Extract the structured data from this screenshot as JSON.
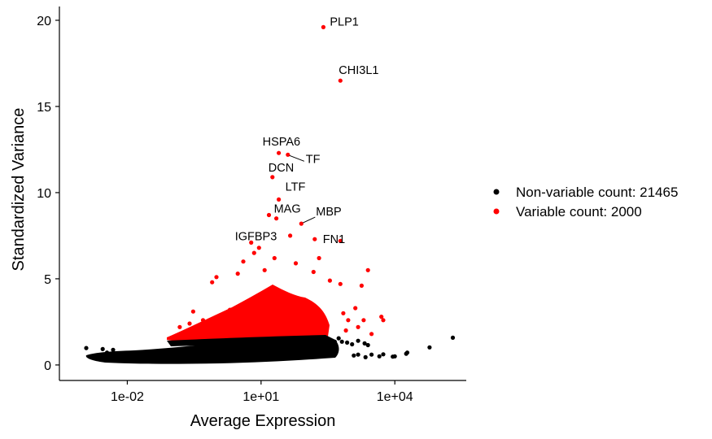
{
  "chart_data": {
    "type": "scatter",
    "xlabel": "Average Expression",
    "ylabel": "Standardized Variance",
    "x_scale": "log10",
    "xlim": [
      0.0003,
      400000
    ],
    "ylim": [
      -0.9,
      20.8
    ],
    "x_ticks": [
      {
        "value": 0.01,
        "label": "1e-02"
      },
      {
        "value": 10,
        "label": "1e+01"
      },
      {
        "value": 10000,
        "label": "1e+04"
      }
    ],
    "y_ticks": [
      {
        "value": 0,
        "label": "0"
      },
      {
        "value": 5,
        "label": "5"
      },
      {
        "value": 10,
        "label": "10"
      },
      {
        "value": 15,
        "label": "15"
      },
      {
        "value": 20,
        "label": "20"
      }
    ],
    "grid": false,
    "legend_position": "right",
    "series": [
      {
        "name": "Non-variable count: 21465",
        "color": "#000000",
        "points": [
          [
            0.0012,
            0.98
          ],
          [
            0.0028,
            0.92
          ],
          [
            0.0035,
            0.72
          ],
          [
            0.0042,
            0.62
          ],
          [
            0.0045,
            0.45
          ],
          [
            0.0055,
            0.35
          ],
          [
            0.0048,
            0.88
          ],
          [
            0.009,
            0.6
          ],
          [
            0.02,
            0.4
          ],
          [
            0.08,
            0.7
          ],
          [
            0.5,
            0.5
          ],
          [
            3.5,
            0.35
          ],
          [
            25,
            0.5
          ],
          [
            120,
            0.6
          ],
          [
            300,
            0.9
          ],
          [
            450,
            1.35
          ],
          [
            550,
            1.55
          ],
          [
            650,
            1.35
          ],
          [
            850,
            1.3
          ],
          [
            1100,
            1.2
          ],
          [
            1500,
            1.4
          ],
          [
            2100,
            1.25
          ],
          [
            2500,
            1.15
          ],
          [
            1200,
            0.55
          ],
          [
            1500,
            0.6
          ],
          [
            2200,
            0.45
          ],
          [
            3000,
            0.6
          ],
          [
            4500,
            0.5
          ],
          [
            5500,
            0.62
          ],
          [
            9000,
            0.48
          ],
          [
            10000,
            0.5
          ],
          [
            18000,
            0.65
          ],
          [
            19000,
            0.72
          ],
          [
            60000,
            1.02
          ],
          [
            200000,
            1.58
          ]
        ]
      },
      {
        "name": "Variable count: 2000",
        "color": "#ff0000",
        "points": [
          [
            250,
            19.6
          ],
          [
            600,
            16.5
          ],
          [
            25,
            12.3
          ],
          [
            40,
            12.2
          ],
          [
            18,
            10.9
          ],
          [
            25,
            9.6
          ],
          [
            22,
            8.5
          ],
          [
            15,
            8.7
          ],
          [
            80,
            8.2
          ],
          [
            45,
            7.5
          ],
          [
            6,
            7.1
          ],
          [
            160,
            7.3
          ],
          [
            600,
            7.2
          ],
          [
            9,
            6.8
          ],
          [
            7,
            6.5
          ],
          [
            20,
            6.2
          ],
          [
            4,
            6.0
          ],
          [
            60,
            5.9
          ],
          [
            150,
            5.4
          ],
          [
            2500,
            5.5
          ],
          [
            200,
            6.2
          ],
          [
            1,
            5.1
          ],
          [
            3,
            5.3
          ],
          [
            12,
            5.5
          ],
          [
            0.8,
            4.8
          ],
          [
            350,
            4.9
          ],
          [
            600,
            4.7
          ],
          [
            1800,
            4.6
          ],
          [
            2000,
            2.6
          ],
          [
            1300,
            3.3
          ],
          [
            300,
            2.2
          ],
          [
            100,
            3.6
          ],
          [
            30,
            4.2
          ],
          [
            50,
            3.0
          ],
          [
            8,
            3.8
          ],
          [
            2,
            3.2
          ],
          [
            0.3,
            3.1
          ],
          [
            0.5,
            2.6
          ],
          [
            1.2,
            2.8
          ],
          [
            700,
            3.0
          ],
          [
            900,
            2.6
          ],
          [
            5000,
            2.8
          ],
          [
            5500,
            2.6
          ],
          [
            3000,
            1.8
          ],
          [
            10,
            2.4
          ],
          [
            0.15,
            2.2
          ],
          [
            0.25,
            2.4
          ],
          [
            40,
            2.3
          ],
          [
            1500,
            2.2
          ],
          [
            800,
            2.0
          ],
          [
            200,
            3.0
          ],
          [
            6,
            2.7
          ],
          [
            0.7,
            2.0
          ]
        ]
      }
    ],
    "labels": [
      {
        "text": "PLP1",
        "x": 250,
        "y": 19.6
      },
      {
        "text": "CHI3L1",
        "x": 600,
        "y": 16.5
      },
      {
        "text": "HSPA6",
        "x": 25,
        "y": 12.3
      },
      {
        "text": "TF",
        "x": 40,
        "y": 12.2
      },
      {
        "text": "DCN",
        "x": 18,
        "y": 10.9
      },
      {
        "text": "LTF",
        "x": 25,
        "y": 9.6
      },
      {
        "text": "MAG",
        "x": 22,
        "y": 8.5
      },
      {
        "text": "MBP",
        "x": 80,
        "y": 8.2
      },
      {
        "text": "IGFBP3",
        "x": 6,
        "y": 7.1
      },
      {
        "text": "FN1",
        "x": 160,
        "y": 7.3
      }
    ]
  }
}
